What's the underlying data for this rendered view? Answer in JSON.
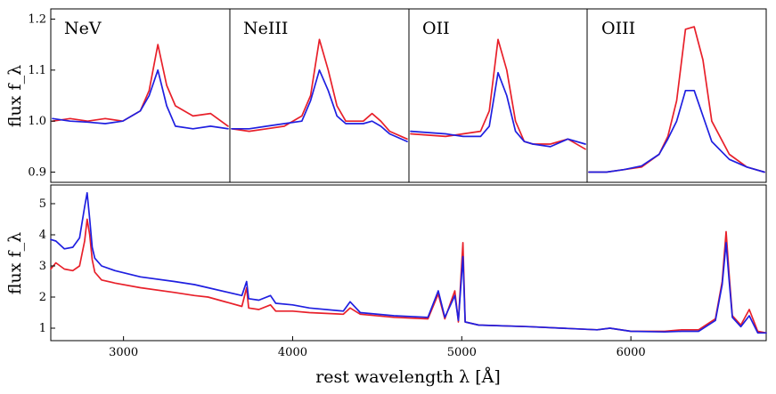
{
  "chart_data": [
    {
      "type": "line",
      "name": "NeV",
      "title": "NeV",
      "ylabel": "flux f_λ",
      "ylim": [
        0.88,
        1.22
      ],
      "yticks": [
        0.9,
        1.0,
        1.1,
        1.2
      ],
      "ytick_labels": [
        "0.9",
        "1.0",
        "1.1",
        "1.2"
      ],
      "series": [
        {
          "name": "red",
          "color": "#e8202a",
          "x": [
            0,
            0.1,
            0.2,
            0.3,
            0.4,
            0.5,
            0.55,
            0.6,
            0.65,
            0.7,
            0.8,
            0.9,
            1.0
          ],
          "values": [
            1.0,
            1.005,
            1.0,
            1.005,
            1.0,
            1.02,
            1.06,
            1.15,
            1.07,
            1.03,
            1.01,
            1.015,
            0.99
          ]
        },
        {
          "name": "blue",
          "color": "#1f1fe0",
          "x": [
            0,
            0.1,
            0.2,
            0.3,
            0.4,
            0.5,
            0.55,
            0.6,
            0.65,
            0.7,
            0.8,
            0.9,
            1.0
          ],
          "values": [
            1.005,
            1.0,
            0.998,
            0.995,
            1.0,
            1.02,
            1.05,
            1.1,
            1.03,
            0.99,
            0.985,
            0.99,
            0.985
          ]
        }
      ]
    },
    {
      "type": "line",
      "name": "NeIII",
      "title": "NeIII",
      "ylim": [
        0.88,
        1.22
      ],
      "series": [
        {
          "name": "red",
          "color": "#e8202a",
          "x": [
            0,
            0.1,
            0.2,
            0.3,
            0.4,
            0.45,
            0.5,
            0.55,
            0.6,
            0.65,
            0.75,
            0.8,
            0.85,
            0.9,
            1.0
          ],
          "values": [
            0.985,
            0.98,
            0.985,
            0.99,
            1.01,
            1.05,
            1.16,
            1.1,
            1.03,
            1.0,
            1.0,
            1.015,
            1.0,
            0.98,
            0.965
          ]
        },
        {
          "name": "blue",
          "color": "#1f1fe0",
          "x": [
            0,
            0.1,
            0.2,
            0.3,
            0.4,
            0.45,
            0.5,
            0.55,
            0.6,
            0.65,
            0.75,
            0.8,
            0.85,
            0.9,
            1.0
          ],
          "values": [
            0.985,
            0.985,
            0.99,
            0.995,
            1.0,
            1.04,
            1.1,
            1.06,
            1.01,
            0.995,
            0.995,
            1.0,
            0.99,
            0.975,
            0.96
          ]
        }
      ]
    },
    {
      "type": "line",
      "name": "OII",
      "title": "OII",
      "ylim": [
        0.88,
        1.22
      ],
      "series": [
        {
          "name": "red",
          "color": "#e8202a",
          "x": [
            0,
            0.2,
            0.3,
            0.4,
            0.45,
            0.5,
            0.55,
            0.6,
            0.65,
            0.7,
            0.8,
            0.9,
            1.0
          ],
          "values": [
            0.975,
            0.97,
            0.975,
            0.98,
            1.02,
            1.16,
            1.1,
            1.0,
            0.96,
            0.955,
            0.955,
            0.965,
            0.945
          ]
        },
        {
          "name": "blue",
          "color": "#1f1fe0",
          "x": [
            0,
            0.2,
            0.3,
            0.4,
            0.45,
            0.5,
            0.55,
            0.6,
            0.65,
            0.7,
            0.8,
            0.9,
            1.0
          ],
          "values": [
            0.98,
            0.975,
            0.97,
            0.97,
            0.99,
            1.095,
            1.05,
            0.98,
            0.96,
            0.955,
            0.95,
            0.965,
            0.955
          ]
        }
      ]
    },
    {
      "type": "line",
      "name": "OIII",
      "title": "OIII",
      "ylim": [
        0.88,
        1.22
      ],
      "series": [
        {
          "name": "red",
          "color": "#e8202a",
          "x": [
            0,
            0.1,
            0.2,
            0.3,
            0.4,
            0.45,
            0.5,
            0.55,
            0.6,
            0.65,
            0.7,
            0.8,
            0.9,
            1.0
          ],
          "values": [
            0.9,
            0.9,
            0.905,
            0.91,
            0.935,
            0.97,
            1.04,
            1.18,
            1.185,
            1.12,
            1.0,
            0.935,
            0.91,
            0.9
          ]
        },
        {
          "name": "blue",
          "color": "#1f1fe0",
          "x": [
            0,
            0.1,
            0.2,
            0.3,
            0.4,
            0.45,
            0.5,
            0.55,
            0.6,
            0.65,
            0.7,
            0.8,
            0.9,
            1.0
          ],
          "values": [
            0.9,
            0.9,
            0.905,
            0.912,
            0.935,
            0.965,
            1.0,
            1.06,
            1.06,
            1.01,
            0.96,
            0.925,
            0.91,
            0.9
          ]
        }
      ]
    },
    {
      "type": "line",
      "name": "full-spectrum",
      "xlabel": "rest wavelength λ [Å]",
      "ylabel": "flux f_λ",
      "xlim": [
        2570,
        6800
      ],
      "ylim": [
        0.6,
        5.6
      ],
      "xticks": [
        3000,
        4000,
        5000,
        6000
      ],
      "xtick_labels": [
        "3000",
        "4000",
        "5000",
        "6000"
      ],
      "yticks": [
        1,
        2,
        3,
        4,
        5
      ],
      "ytick_labels": [
        "1",
        "2",
        "3",
        "4",
        "5"
      ],
      "series": [
        {
          "name": "red",
          "color": "#e8202a",
          "x": [
            2570,
            2600,
            2650,
            2700,
            2740,
            2770,
            2785,
            2800,
            2815,
            2830,
            2870,
            2950,
            3100,
            3300,
            3420,
            3500,
            3700,
            3728,
            3740,
            3800,
            3869,
            3900,
            4000,
            4100,
            4300,
            4340,
            4400,
            4600,
            4800,
            4861,
            4900,
            4959,
            4980,
            5007,
            5020,
            5100,
            5400,
            5800,
            5876,
            6000,
            6200,
            6300,
            6400,
            6500,
            6540,
            6563,
            6580,
            6600,
            6650,
            6700,
            6750,
            6800
          ],
          "values": [
            2.9,
            3.1,
            2.9,
            2.85,
            3.0,
            3.8,
            4.5,
            4.0,
            3.2,
            2.8,
            2.55,
            2.45,
            2.3,
            2.15,
            2.05,
            2.0,
            1.7,
            2.3,
            1.65,
            1.6,
            1.75,
            1.55,
            1.55,
            1.5,
            1.45,
            1.65,
            1.45,
            1.35,
            1.3,
            2.1,
            1.3,
            2.2,
            1.2,
            3.75,
            1.2,
            1.1,
            1.05,
            0.95,
            1.0,
            0.9,
            0.9,
            0.95,
            0.95,
            1.3,
            2.5,
            4.1,
            2.8,
            1.4,
            1.1,
            1.6,
            0.9,
            0.85
          ]
        },
        {
          "name": "blue",
          "color": "#1f1fe0",
          "x": [
            2570,
            2600,
            2650,
            2700,
            2740,
            2770,
            2785,
            2800,
            2815,
            2830,
            2870,
            2950,
            3100,
            3300,
            3420,
            3500,
            3700,
            3728,
            3740,
            3800,
            3869,
            3900,
            4000,
            4100,
            4300,
            4340,
            4400,
            4600,
            4800,
            4861,
            4900,
            4959,
            4980,
            5007,
            5020,
            5100,
            5400,
            5800,
            5876,
            6000,
            6200,
            6300,
            6400,
            6500,
            6540,
            6563,
            6580,
            6600,
            6650,
            6700,
            6750,
            6800
          ],
          "values": [
            3.85,
            3.8,
            3.55,
            3.6,
            3.9,
            4.9,
            5.35,
            4.5,
            3.6,
            3.25,
            3.0,
            2.85,
            2.65,
            2.5,
            2.4,
            2.3,
            2.05,
            2.5,
            1.95,
            1.9,
            2.05,
            1.8,
            1.75,
            1.65,
            1.55,
            1.85,
            1.5,
            1.4,
            1.35,
            2.2,
            1.35,
            2.05,
            1.25,
            3.3,
            1.2,
            1.1,
            1.05,
            0.95,
            1.0,
            0.9,
            0.88,
            0.9,
            0.9,
            1.25,
            2.4,
            3.75,
            2.6,
            1.35,
            1.05,
            1.4,
            0.85,
            0.85
          ]
        }
      ]
    }
  ]
}
